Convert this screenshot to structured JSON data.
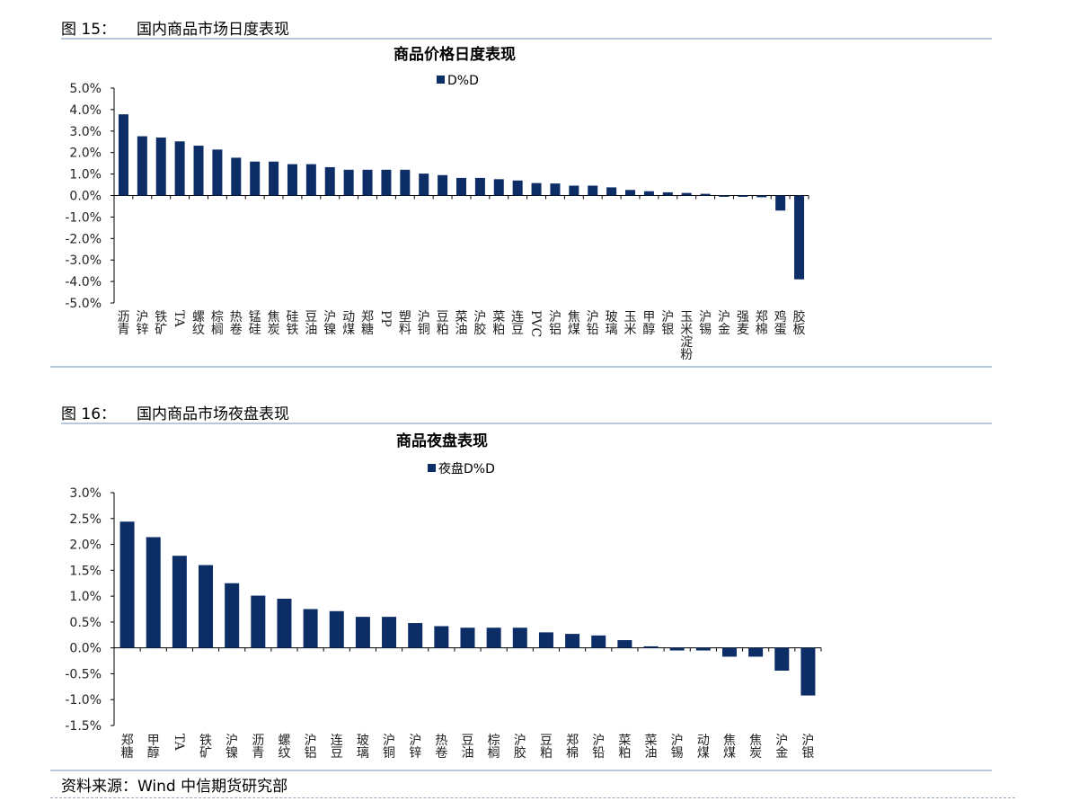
{
  "figures": [
    {
      "number": "图 15：",
      "title": "国内商品市场日度表现"
    },
    {
      "number": "图 16：",
      "title": "国内商品市场夜盘表现"
    }
  ],
  "source": "资料来源：Wind  中信期货研究部",
  "colors": {
    "bar": "#0d2d66",
    "rule": "#b8c8d8"
  },
  "chart_data": [
    {
      "type": "bar",
      "title": "商品价格日度表现",
      "series": [
        {
          "name": "D%D",
          "values": [
            3.78,
            2.76,
            2.7,
            2.52,
            2.32,
            2.14,
            1.76,
            1.58,
            1.58,
            1.46,
            1.46,
            1.32,
            1.2,
            1.2,
            1.2,
            1.2,
            1.02,
            0.95,
            0.82,
            0.82,
            0.76,
            0.7,
            0.58,
            0.56,
            0.46,
            0.46,
            0.38,
            0.26,
            0.2,
            0.15,
            0.12,
            0.08,
            -0.06,
            -0.06,
            -0.08,
            -0.7,
            -3.9
          ]
        }
      ],
      "categories": [
        "沥青",
        "沪锌",
        "铁矿",
        "TA",
        "螺纹",
        "棕榈",
        "热卷",
        "锰硅",
        "焦炭",
        "硅铁",
        "豆油",
        "沪镍",
        "动煤",
        "郑糖",
        "PP",
        "塑料",
        "沪铜",
        "豆粕",
        "菜油",
        "沪胶",
        "菜粕",
        "连豆",
        "PVC",
        "沪铝",
        "焦煤",
        "沪铅",
        "玻璃",
        "玉米",
        "甲醇",
        "沪银",
        "玉米淀粉",
        "沪锡",
        "沪金",
        "强麦",
        "郑棉",
        "鸡蛋",
        "胶板"
      ],
      "ylim": [
        -5.0,
        5.0
      ],
      "yticks": [
        "5.0%",
        "4.0%",
        "3.0%",
        "2.0%",
        "1.0%",
        "0.0%",
        "-1.0%",
        "-2.0%",
        "-3.0%",
        "-4.0%",
        "-5.0%"
      ],
      "legend": "top-center"
    },
    {
      "type": "bar",
      "title": "商品夜盘表现",
      "series": [
        {
          "name": "夜盘D%D",
          "values": [
            2.44,
            2.14,
            1.78,
            1.6,
            1.25,
            1.01,
            0.95,
            0.75,
            0.71,
            0.6,
            0.6,
            0.48,
            0.42,
            0.39,
            0.39,
            0.39,
            0.3,
            0.27,
            0.24,
            0.15,
            0.03,
            -0.05,
            -0.05,
            -0.17,
            -0.17,
            -0.44,
            -0.92
          ]
        }
      ],
      "categories": [
        "郑糖",
        "甲醇",
        "TA",
        "铁矿",
        "沪镍",
        "沥青",
        "螺纹",
        "沪铝",
        "连豆",
        "玻璃",
        "沪铜",
        "沪锌",
        "热卷",
        "豆油",
        "棕榈",
        "沪胶",
        "豆粕",
        "郑棉",
        "沪铅",
        "菜粕",
        "菜油",
        "沪锡",
        "动煤",
        "焦煤",
        "焦炭",
        "沪金",
        "沪银"
      ],
      "ylim": [
        -1.5,
        3.0
      ],
      "yticks": [
        "3.0%",
        "2.5%",
        "2.0%",
        "1.5%",
        "1.0%",
        "0.5%",
        "0.0%",
        "-0.5%",
        "-1.0%",
        "-1.5%"
      ],
      "legend": "top-center"
    }
  ]
}
